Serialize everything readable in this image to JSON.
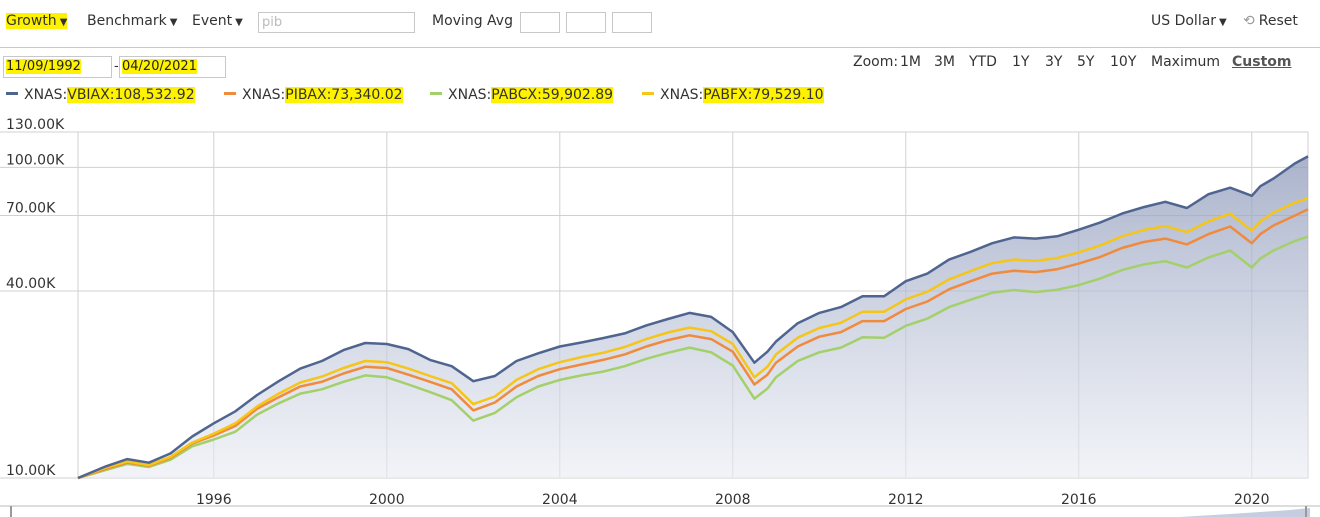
{
  "toolbar": {
    "growth_label": "Growth",
    "benchmark_label": "Benchmark",
    "event_label": "Event",
    "search_placeholder": "pib",
    "moving_avg_label": "Moving Avg",
    "currency_label": "US Dollar",
    "reset_label": "Reset"
  },
  "dates": {
    "start": "11/09/1992",
    "separator": "-",
    "end": "04/20/2021"
  },
  "zoom": {
    "label": "Zoom:",
    "options": [
      "1M",
      "3M",
      "YTD",
      "1Y",
      "3Y",
      "5Y",
      "10Y",
      "Maximum",
      "Custom"
    ],
    "selected": "Custom"
  },
  "colors": {
    "VBIAX": "#4f6590",
    "PIBAX": "#f08a3c",
    "PABCX": "#a3d06a",
    "PABFX": "#f5c518",
    "area": "#b9c1d6",
    "grid": "#d0d0d0"
  },
  "legend": [
    {
      "prefix": "XNAS:",
      "label": "VBIAX:108,532.92"
    },
    {
      "prefix": "XNAS:",
      "label": "PIBAX:73,340.02"
    },
    {
      "prefix": "XNAS:",
      "label": "PABCX:59,902.89"
    },
    {
      "prefix": "XNAS:",
      "label": "PABFX:79,529.10"
    }
  ],
  "chart_data": {
    "type": "line",
    "y_scale": "log",
    "ylim": [
      10000,
      130000
    ],
    "xlim": [
      1992.86,
      2021.3
    ],
    "y_ticks": [
      {
        "value": 10000,
        "label": "10.00K"
      },
      {
        "value": 40000,
        "label": "40.00K"
      },
      {
        "value": 70000,
        "label": "70.00K"
      },
      {
        "value": 100000,
        "label": "100.00K"
      },
      {
        "value": 130000,
        "label": "130.00K"
      }
    ],
    "x_ticks": [
      {
        "value": 1996,
        "label": "1996"
      },
      {
        "value": 2000,
        "label": "2000"
      },
      {
        "value": 2004,
        "label": "2004"
      },
      {
        "value": 2008,
        "label": "2008"
      },
      {
        "value": 2012,
        "label": "2012"
      },
      {
        "value": 2016,
        "label": "2016"
      },
      {
        "value": 2020,
        "label": "2020"
      }
    ],
    "x": [
      1992.86,
      1993.5,
      1994.0,
      1994.5,
      1995.0,
      1995.5,
      1996.0,
      1996.5,
      1997.0,
      1997.5,
      1998.0,
      1998.5,
      1999.0,
      1999.5,
      2000.0,
      2000.5,
      2001.0,
      2001.5,
      2002.0,
      2002.5,
      2003.0,
      2003.5,
      2004.0,
      2004.5,
      2005.0,
      2005.5,
      2006.0,
      2006.5,
      2007.0,
      2007.5,
      2008.0,
      2008.5,
      2008.8,
      2009.0,
      2009.5,
      2010.0,
      2010.5,
      2011.0,
      2011.5,
      2012.0,
      2012.5,
      2013.0,
      2013.5,
      2014.0,
      2014.5,
      2015.0,
      2015.5,
      2016.0,
      2016.5,
      2017.0,
      2017.5,
      2018.0,
      2018.5,
      2019.0,
      2019.5,
      2020.0,
      2020.2,
      2020.5,
      2021.0,
      2021.3
    ],
    "series": [
      {
        "name": "VBIAX",
        "values": [
          10000,
          10900,
          11500,
          11200,
          12000,
          13600,
          15000,
          16400,
          18500,
          20500,
          22500,
          23800,
          25800,
          27200,
          27000,
          26000,
          24000,
          22900,
          20500,
          21300,
          23800,
          25200,
          26500,
          27300,
          28200,
          29200,
          31000,
          32500,
          34000,
          33000,
          29500,
          23500,
          25500,
          27500,
          31500,
          34000,
          35500,
          38500,
          38500,
          43000,
          45500,
          50500,
          53500,
          57000,
          59500,
          59000,
          60000,
          63000,
          66500,
          71000,
          74500,
          77500,
          74000,
          82000,
          86000,
          81000,
          87000,
          92000,
          103000,
          108500
        ]
      },
      {
        "name": "PIBAX",
        "values": [
          10000,
          10700,
          11200,
          10950,
          11600,
          12900,
          13700,
          14700,
          16700,
          18200,
          19700,
          20400,
          21700,
          22800,
          22600,
          21500,
          20400,
          19300,
          16500,
          17500,
          19700,
          21300,
          22400,
          23200,
          24000,
          25000,
          26500,
          27800,
          28800,
          28000,
          25500,
          20000,
          21500,
          23500,
          26500,
          28500,
          29500,
          32000,
          32000,
          35000,
          37000,
          40500,
          43000,
          45500,
          46500,
          46000,
          47000,
          49000,
          51500,
          55000,
          57500,
          59000,
          56500,
          61000,
          64500,
          57000,
          61000,
          65000,
          70000,
          73300
        ]
      },
      {
        "name": "PABCX",
        "values": [
          10000,
          10600,
          11100,
          10850,
          11450,
          12650,
          13300,
          14100,
          16000,
          17400,
          18700,
          19300,
          20400,
          21400,
          21100,
          20000,
          18900,
          17800,
          15300,
          16200,
          18200,
          19700,
          20700,
          21400,
          22000,
          22900,
          24200,
          25300,
          26300,
          25400,
          23000,
          18000,
          19400,
          21100,
          23800,
          25400,
          26300,
          28400,
          28300,
          30900,
          32600,
          35500,
          37500,
          39500,
          40300,
          39700,
          40400,
          41800,
          43900,
          46700,
          48700,
          49900,
          47600,
          51300,
          54000,
          47600,
          50900,
          54000,
          58000,
          59900
        ]
      },
      {
        "name": "PABFX",
        "values": [
          10000,
          10800,
          11300,
          11000,
          11700,
          13000,
          13900,
          15000,
          17000,
          18700,
          20300,
          21200,
          22600,
          23800,
          23600,
          22500,
          21300,
          20200,
          17300,
          18300,
          20700,
          22400,
          23600,
          24500,
          25300,
          26400,
          28000,
          29400,
          30500,
          29700,
          27000,
          21100,
          22800,
          25000,
          28300,
          30400,
          31600,
          34300,
          34300,
          37600,
          39800,
          43600,
          46400,
          49200,
          50500,
          50000,
          51100,
          53300,
          56100,
          60000,
          62900,
          64700,
          61900,
          67000,
          71000,
          62500,
          67000,
          71500,
          77000,
          79500
        ]
      }
    ]
  }
}
